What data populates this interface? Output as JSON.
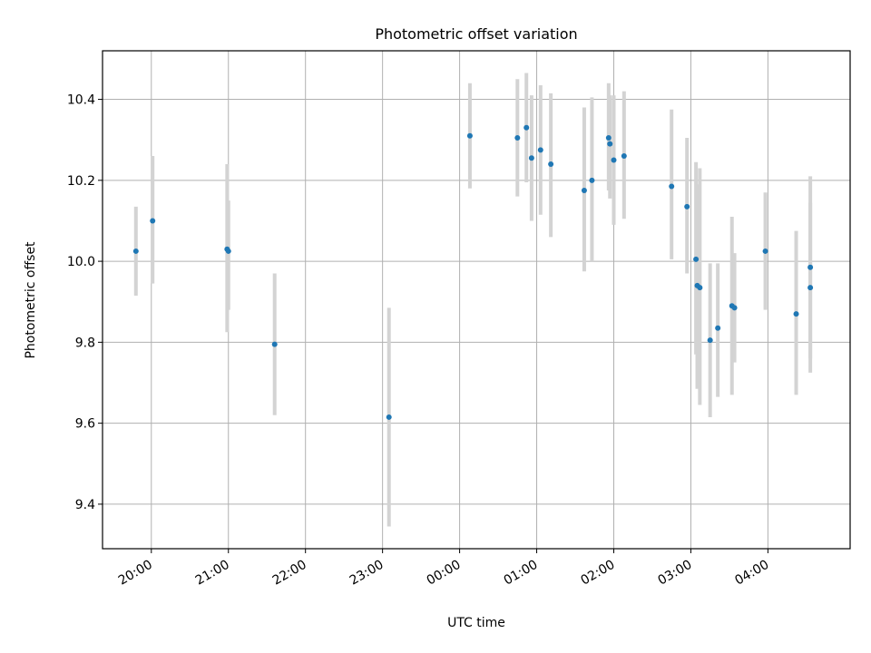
{
  "chart_data": {
    "type": "scatter",
    "title": "Photometric offset variation",
    "xlabel": "UTC time",
    "ylabel": "Photometric offset",
    "xlim": [
      "19:22",
      "05:04"
    ],
    "ylim": [
      9.29,
      10.52
    ],
    "grid": true,
    "y_ticks": [
      9.4,
      9.6,
      9.8,
      10.0,
      10.2,
      10.4
    ],
    "x_ticks": [
      "20:00",
      "21:00",
      "22:00",
      "23:00",
      "00:00",
      "01:00",
      "02:00",
      "03:00",
      "04:00"
    ],
    "points": [
      {
        "time": "19:48",
        "y": 10.025,
        "err_low": 9.915,
        "err_high": 10.135
      },
      {
        "time": "20:01",
        "y": 10.1,
        "err_low": 9.945,
        "err_high": 10.26
      },
      {
        "time": "20:59",
        "y": 10.03,
        "err_low": 9.825,
        "err_high": 10.24
      },
      {
        "time": "21:00",
        "y": 10.025,
        "err_low": 9.88,
        "err_high": 10.15
      },
      {
        "time": "21:36",
        "y": 9.795,
        "err_low": 9.62,
        "err_high": 9.97
      },
      {
        "time": "23:05",
        "y": 9.615,
        "err_low": 9.345,
        "err_high": 9.885
      },
      {
        "time": "00:08",
        "y": 10.31,
        "err_low": 10.18,
        "err_high": 10.44
      },
      {
        "time": "00:45",
        "y": 10.305,
        "err_low": 10.16,
        "err_high": 10.45
      },
      {
        "time": "00:52",
        "y": 10.33,
        "err_low": 10.195,
        "err_high": 10.465
      },
      {
        "time": "00:56",
        "y": 10.255,
        "err_low": 10.1,
        "err_high": 10.41
      },
      {
        "time": "01:03",
        "y": 10.275,
        "err_low": 10.115,
        "err_high": 10.435
      },
      {
        "time": "01:11",
        "y": 10.24,
        "err_low": 10.06,
        "err_high": 10.415
      },
      {
        "time": "01:37",
        "y": 10.175,
        "err_low": 9.975,
        "err_high": 10.38
      },
      {
        "time": "01:43",
        "y": 10.2,
        "err_low": 10.0,
        "err_high": 10.405
      },
      {
        "time": "01:56",
        "y": 10.305,
        "err_low": 10.175,
        "err_high": 10.44
      },
      {
        "time": "01:57",
        "y": 10.29,
        "err_low": 10.155,
        "err_high": 10.41
      },
      {
        "time": "02:00",
        "y": 10.25,
        "err_low": 10.09,
        "err_high": 10.41
      },
      {
        "time": "02:08",
        "y": 10.26,
        "err_low": 10.105,
        "err_high": 10.42
      },
      {
        "time": "02:45",
        "y": 10.185,
        "err_low": 10.005,
        "err_high": 10.375
      },
      {
        "time": "02:57",
        "y": 10.135,
        "err_low": 9.97,
        "err_high": 10.305
      },
      {
        "time": "03:04",
        "y": 10.005,
        "err_low": 9.77,
        "err_high": 10.245
      },
      {
        "time": "03:05",
        "y": 9.94,
        "err_low": 9.685,
        "err_high": 10.19
      },
      {
        "time": "03:07",
        "y": 9.935,
        "err_low": 9.645,
        "err_high": 10.23
      },
      {
        "time": "03:15",
        "y": 9.805,
        "err_low": 9.615,
        "err_high": 9.995
      },
      {
        "time": "03:21",
        "y": 9.835,
        "err_low": 9.665,
        "err_high": 9.995
      },
      {
        "time": "03:32",
        "y": 9.89,
        "err_low": 9.67,
        "err_high": 10.11
      },
      {
        "time": "03:34",
        "y": 9.885,
        "err_low": 9.75,
        "err_high": 10.02
      },
      {
        "time": "03:58",
        "y": 10.025,
        "err_low": 9.88,
        "err_high": 10.17
      },
      {
        "time": "04:22",
        "y": 9.87,
        "err_low": 9.67,
        "err_high": 10.075
      },
      {
        "time": "04:33",
        "y": 9.985,
        "err_low": 9.76,
        "err_high": 10.21
      },
      {
        "time": "04:33",
        "y": 9.935,
        "err_low": 9.725,
        "err_high": 10.145
      }
    ]
  }
}
